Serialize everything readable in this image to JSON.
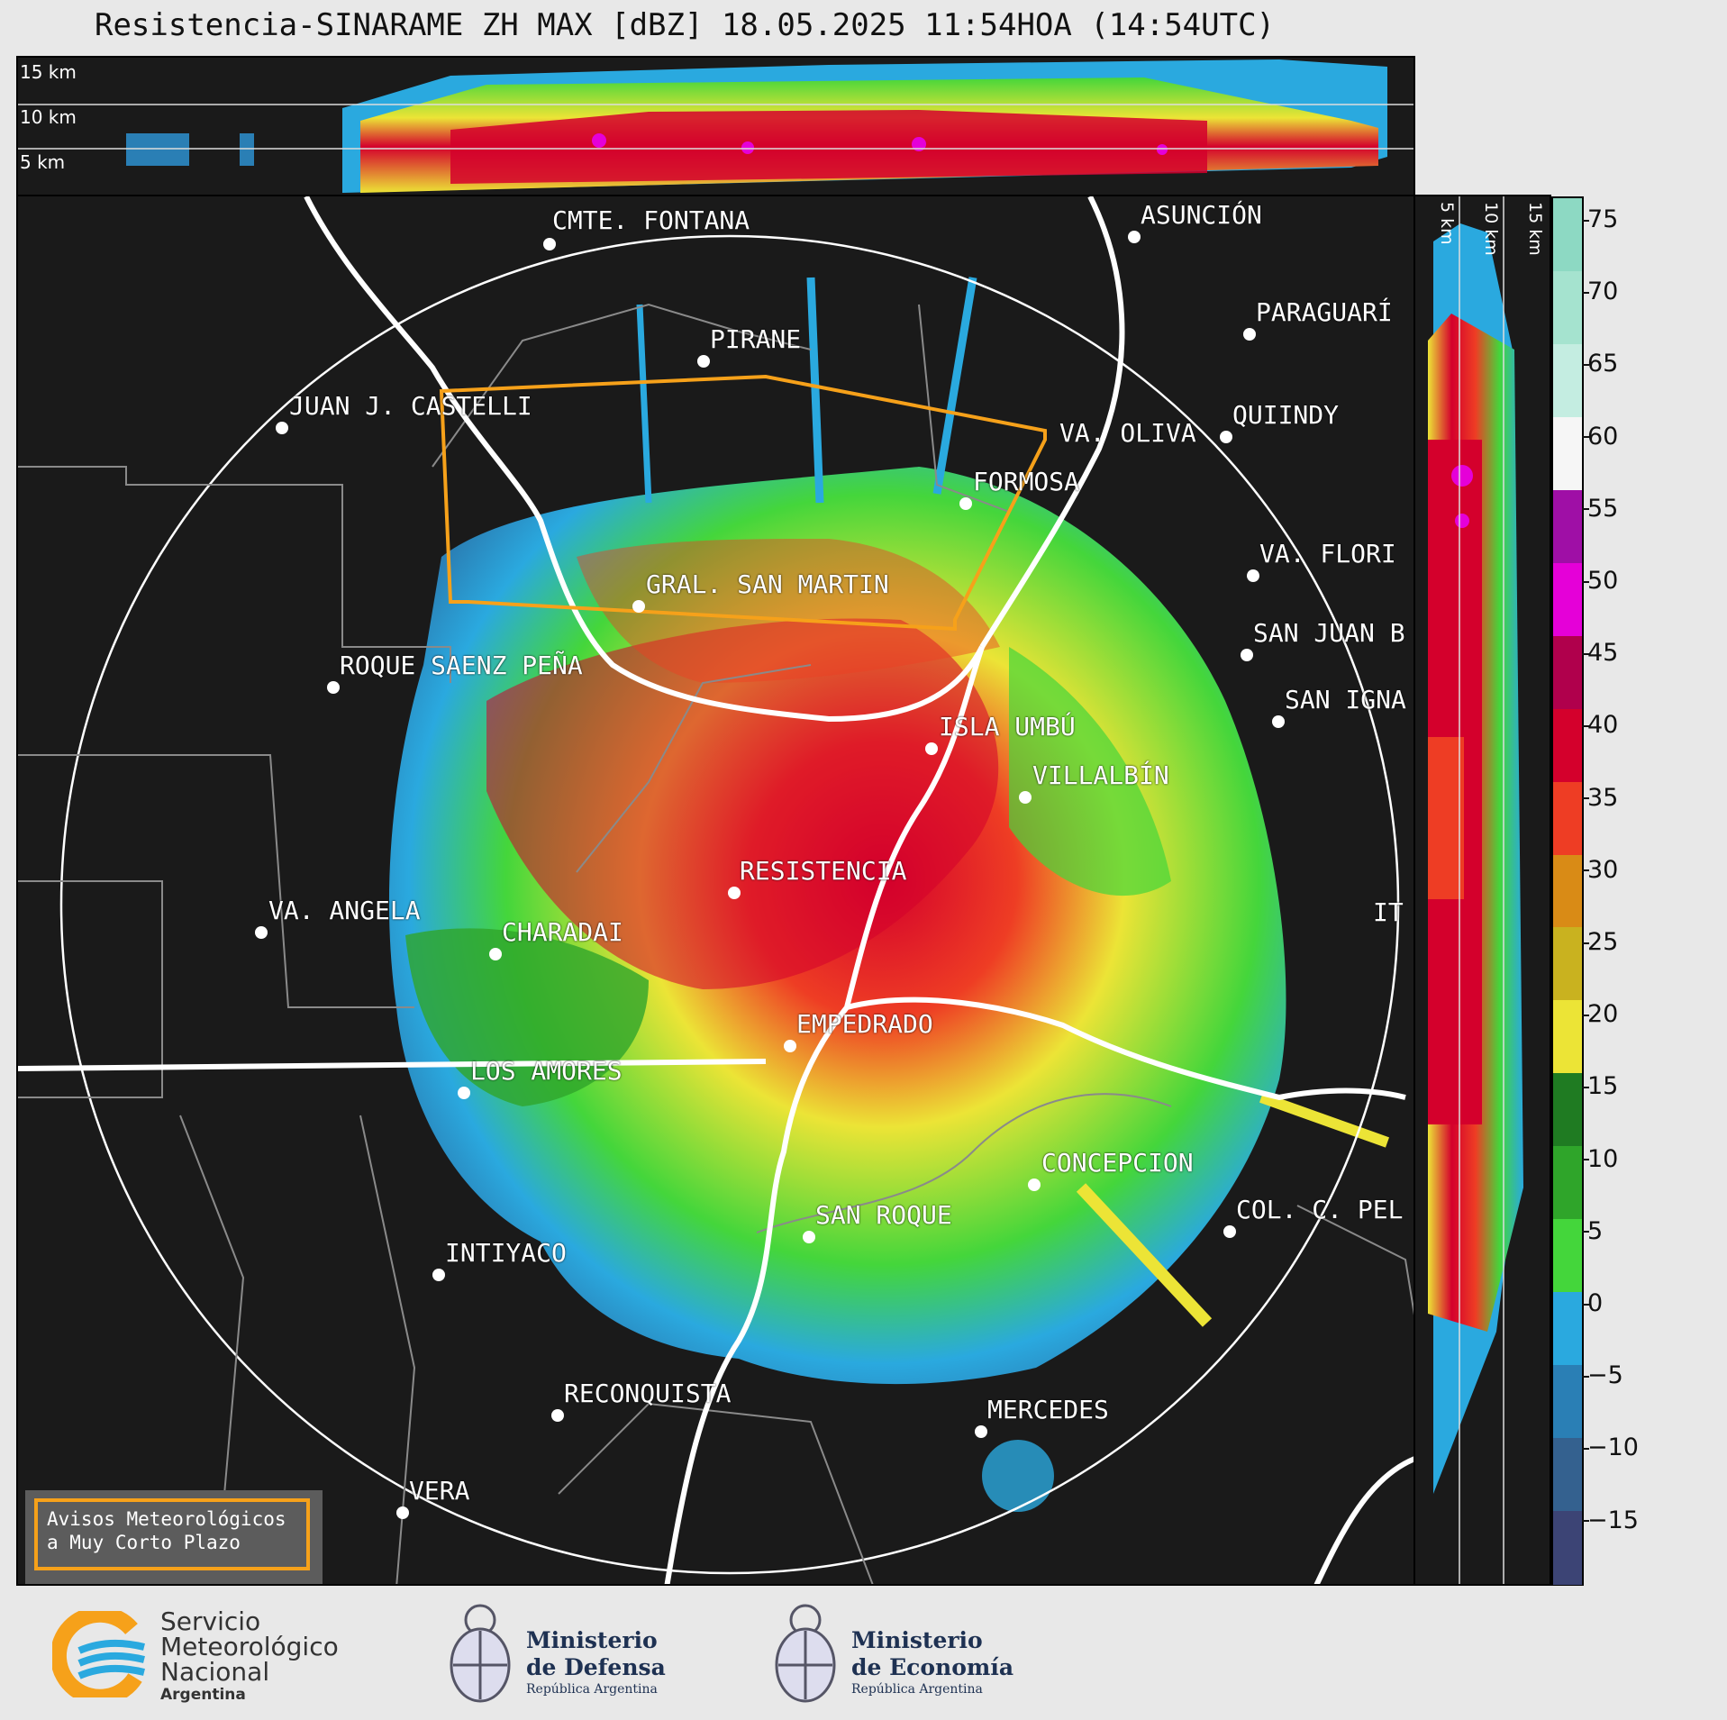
{
  "title": "Resistencia-SINARAME ZH MAX [dBZ] 18.05.2025 11:54HOA (14:54UTC)",
  "top_panel": {
    "height_labels": [
      "15 km",
      "10 km",
      "5 km"
    ]
  },
  "side_panel": {
    "height_labels": [
      "5 km",
      "10 km",
      "15 km"
    ]
  },
  "colorbar": {
    "unit": "dBZ",
    "ticks": [
      "75",
      "70",
      "65",
      "60",
      "55",
      "50",
      "45",
      "40",
      "35",
      "30",
      "25",
      "20",
      "15",
      "10",
      "5",
      "0",
      "−5",
      "−10",
      "−15"
    ],
    "colors": [
      "#8dd9c3",
      "#a5e3cf",
      "#c4ede1",
      "#f6f6f6",
      "#9f0fa6",
      "#e500d8",
      "#b0004c",
      "#d4002c",
      "#ee3d24",
      "#d98b16",
      "#c9b21f",
      "#ece436",
      "#1f7b22",
      "#2fa52a",
      "#44d63b",
      "#2aa9df",
      "#2a7fb5",
      "#34618f",
      "#3c4475"
    ]
  },
  "cities": [
    {
      "name": "CMTE. FONTANA"
    },
    {
      "name": "ASUNCIÓN"
    },
    {
      "name": "PIRANE"
    },
    {
      "name": "PARAGUARÍ"
    },
    {
      "name": "JUAN J. CASTELLI"
    },
    {
      "name": "VA. OLIVA"
    },
    {
      "name": "QUIINDY"
    },
    {
      "name": "FORMOSA"
    },
    {
      "name": "VA. FLORI"
    },
    {
      "name": "GRAL. SAN MARTIN"
    },
    {
      "name": "SAN JUAN B"
    },
    {
      "name": "ROQUE SAENZ PEÑA"
    },
    {
      "name": "SAN IGNA"
    },
    {
      "name": "ISLA UMBÚ"
    },
    {
      "name": "VILLALBÍN"
    },
    {
      "name": "RESISTENCIA"
    },
    {
      "name": "VA. ANGELA"
    },
    {
      "name": "CHARADAI"
    },
    {
      "name": "IT"
    },
    {
      "name": "EMPEDRADO"
    },
    {
      "name": "LOS AMORES"
    },
    {
      "name": "CONCEPCION"
    },
    {
      "name": "SAN ROQUE"
    },
    {
      "name": "COL. C. PEL"
    },
    {
      "name": "INTIYACO"
    },
    {
      "name": "RECONQUISTA"
    },
    {
      "name": "MERCEDES"
    },
    {
      "name": "VERA"
    }
  ],
  "warning_box": {
    "line1": "Avisos Meteorológicos",
    "line2": "a Muy Corto Plazo"
  },
  "logos": {
    "smn": {
      "line1": "Servicio",
      "line2": "Meteorológico",
      "line3": "Nacional",
      "line4": "Argentina"
    },
    "defensa": {
      "line1": "Ministerio",
      "line2": "de Defensa",
      "line3": "República Argentina"
    },
    "economia": {
      "line1": "Ministerio",
      "line2": "de Economía",
      "line3": "República Argentina"
    }
  },
  "accent_colors": {
    "warning_polygon": "#f6a11a",
    "background": "#1a1a1a",
    "rivers": "#ffffff"
  }
}
